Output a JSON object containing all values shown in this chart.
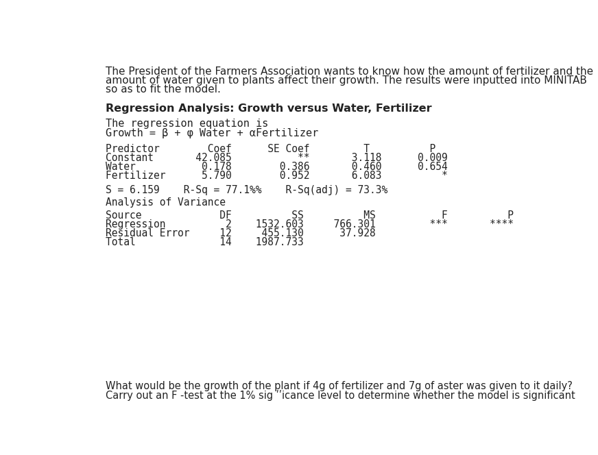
{
  "bg_color": "#ffffff",
  "intro_text": [
    "The President of the Farmers Association wants to know how the amount of fertilizer and the",
    "amount of water given to plants affect their growth. The results were inputted into MINITAB",
    "so as to fit the model."
  ],
  "bold_heading": "Regression Analysis: Growth versus Water, Fertilizer",
  "mono_line1": "The regression equation is",
  "mono_line2": "Growth = β + φ Water + αFertilizer",
  "pred_header": "Predictor        Coef      SE Coef         T          P",
  "pred_rows": [
    "Constant       42.085           **       3.118      0.009",
    "Water           0.178        0.386       0.460      0.654",
    "Fertilizer      5.790        0.952       6.083          *"
  ],
  "stats_line": "S = 6.159    R-Sq = 77.1%%    R-Sq(adj) = 73.3%",
  "anova_heading": "Analysis of Variance",
  "anova_header": "Source             DF          SS          MS           F          P",
  "anova_rows": [
    "Regression          2    1532.603     766.301         ***       ****",
    "Residual Error     12     455.130      37.928",
    "Total              14    1987.733"
  ],
  "footer_line1": "What would be the growth of the plant if 4g of fertilizer and 7g of aster was given to it daily?",
  "footer_line2": "Carry out an F -test at the 1% sig ʹʹicance level to determine whether the model is significant"
}
